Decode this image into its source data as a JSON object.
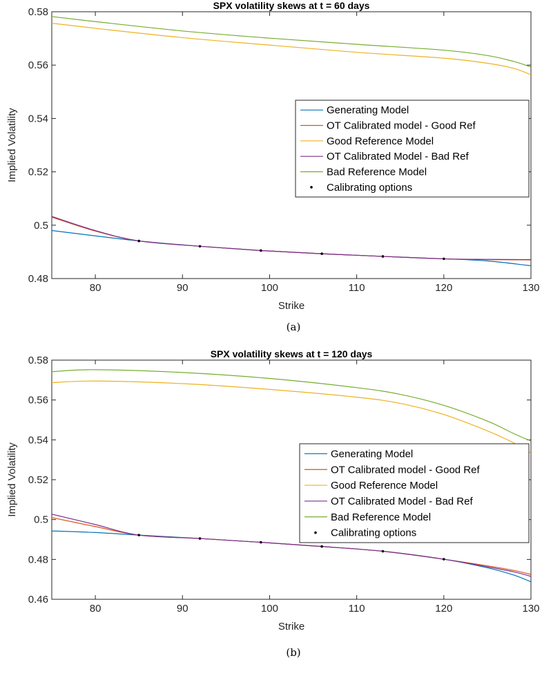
{
  "chart_data": [
    {
      "type": "line",
      "title": "SPX volatility skews at t = 60 days",
      "xlabel": "Strike",
      "ylabel": "Implied Volatility",
      "caption": "(a)",
      "xlim": [
        75,
        130
      ],
      "ylim": [
        0.48,
        0.58
      ],
      "xticks": [
        80,
        90,
        100,
        110,
        120,
        130
      ],
      "yticks": [
        0.48,
        0.5,
        0.52,
        0.54,
        0.56,
        0.58
      ],
      "ytick_labels": [
        "0.48",
        "0.5",
        "0.52",
        "0.54",
        "0.56",
        "0.58"
      ],
      "legend_position": "right",
      "series": [
        {
          "name": "Generating Model",
          "color": "#0072BD",
          "x": [
            75,
            80,
            85,
            92,
            99,
            106,
            113,
            120,
            125,
            130
          ],
          "y": [
            0.498,
            0.496,
            0.4941,
            0.4921,
            0.4905,
            0.4893,
            0.4883,
            0.4874,
            0.4866,
            0.4848
          ]
        },
        {
          "name": "OT Calibrated model - Good Ref",
          "color": "#D95319",
          "x": [
            75,
            80,
            85,
            92,
            99,
            106,
            113,
            120,
            125,
            130
          ],
          "y": [
            0.503,
            0.4978,
            0.4941,
            0.4921,
            0.4905,
            0.4893,
            0.4883,
            0.4874,
            0.4871,
            0.487
          ]
        },
        {
          "name": "Good Reference Model",
          "color": "#EDB120",
          "x": [
            75,
            80,
            90,
            100,
            110,
            120,
            125,
            128,
            130
          ],
          "y": [
            0.5757,
            0.5738,
            0.5703,
            0.5675,
            0.5648,
            0.5626,
            0.5607,
            0.5588,
            0.5564
          ]
        },
        {
          "name": "OT Calibrated Model - Bad Ref",
          "color": "#7E2F8E",
          "x": [
            75,
            80,
            85,
            92,
            99,
            106,
            113,
            120,
            125,
            130
          ],
          "y": [
            0.5033,
            0.498,
            0.4941,
            0.4921,
            0.4905,
            0.4893,
            0.4883,
            0.4874,
            0.4872,
            0.4871
          ]
        },
        {
          "name": "Bad Reference Model",
          "color": "#77AC30",
          "x": [
            75,
            80,
            90,
            100,
            110,
            120,
            125,
            128,
            130
          ],
          "y": [
            0.5782,
            0.5763,
            0.5728,
            0.5701,
            0.5678,
            0.5656,
            0.5636,
            0.5614,
            0.5593
          ]
        }
      ],
      "calibrating_options": {
        "name": "Calibrating options",
        "color": "#000000",
        "x": [
          85,
          92,
          99,
          106,
          113,
          120
        ],
        "y": [
          0.4941,
          0.4921,
          0.4905,
          0.4893,
          0.4883,
          0.4874
        ]
      }
    },
    {
      "type": "line",
      "title": "SPX volatility skews at t = 120 days",
      "xlabel": "Strike",
      "ylabel": "Implied Volatility",
      "caption": "(b)",
      "xlim": [
        75,
        130
      ],
      "ylim": [
        0.46,
        0.58
      ],
      "xticks": [
        80,
        90,
        100,
        110,
        120,
        130
      ],
      "yticks": [
        0.46,
        0.48,
        0.5,
        0.52,
        0.54,
        0.56,
        0.58
      ],
      "ytick_labels": [
        "0.46",
        "0.48",
        "0.5",
        "0.52",
        "0.54",
        "0.56",
        "0.58"
      ],
      "legend_position": "right",
      "series": [
        {
          "name": "Generating Model",
          "color": "#0072BD",
          "x": [
            75,
            80,
            85,
            92,
            99,
            106,
            113,
            120,
            125,
            128,
            130
          ],
          "y": [
            0.4943,
            0.4935,
            0.4922,
            0.4905,
            0.4886,
            0.4865,
            0.4841,
            0.4801,
            0.4758,
            0.4722,
            0.4688
          ]
        },
        {
          "name": "OT Calibrated model - Good Ref",
          "color": "#D95319",
          "x": [
            75,
            80,
            85,
            92,
            99,
            106,
            113,
            120,
            125,
            128,
            130
          ],
          "y": [
            0.501,
            0.4965,
            0.4922,
            0.4905,
            0.4886,
            0.4865,
            0.4841,
            0.4801,
            0.4768,
            0.4745,
            0.4725
          ]
        },
        {
          "name": "Good Reference Model",
          "color": "#EDB120",
          "x": [
            75,
            80,
            90,
            100,
            110,
            115,
            120,
            125,
            128,
            130
          ],
          "y": [
            0.5687,
            0.5695,
            0.5682,
            0.5653,
            0.5614,
            0.5583,
            0.5527,
            0.5445,
            0.5385,
            0.5333
          ]
        },
        {
          "name": "OT Calibrated Model - Bad Ref",
          "color": "#7E2F8E",
          "x": [
            75,
            80,
            85,
            92,
            99,
            106,
            113,
            120,
            125,
            128,
            130
          ],
          "y": [
            0.5027,
            0.4975,
            0.4922,
            0.4905,
            0.4886,
            0.4865,
            0.4841,
            0.4801,
            0.4763,
            0.4738,
            0.4715
          ]
        },
        {
          "name": "Bad Reference Model",
          "color": "#77AC30",
          "x": [
            75,
            80,
            90,
            100,
            110,
            115,
            120,
            125,
            128,
            130
          ],
          "y": [
            0.5742,
            0.5752,
            0.5738,
            0.5708,
            0.5662,
            0.5628,
            0.5573,
            0.5494,
            0.5432,
            0.5394
          ]
        }
      ],
      "calibrating_options": {
        "name": "Calibrating options",
        "color": "#000000",
        "x": [
          85,
          92,
          99,
          106,
          113,
          120
        ],
        "y": [
          0.4922,
          0.4905,
          0.4886,
          0.4865,
          0.4841,
          0.4801
        ]
      }
    }
  ]
}
